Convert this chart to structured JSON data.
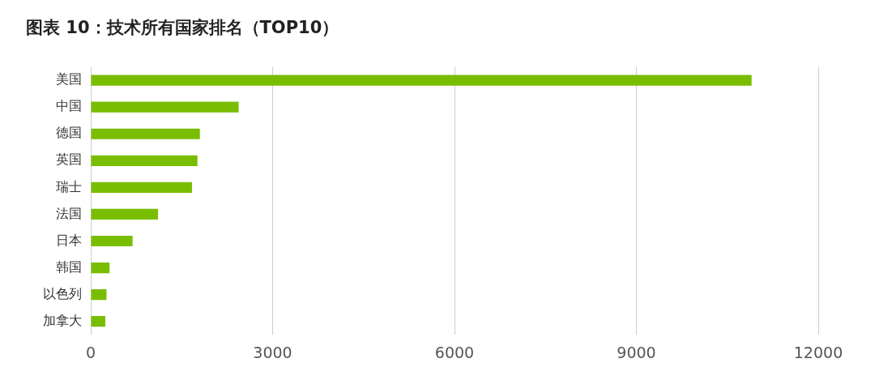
{
  "chart_data": {
    "type": "bar",
    "orientation": "horizontal",
    "title": "图表 10：技术所有国家排名（TOP10）",
    "categories": [
      "美国",
      "中国",
      "德国",
      "英国",
      "瑞士",
      "法国",
      "日本",
      "韩国",
      "以色列",
      "加拿大"
    ],
    "values": [
      10900,
      2440,
      1800,
      1760,
      1670,
      1110,
      690,
      310,
      260,
      240
    ],
    "color": "#79bd00",
    "xlim": [
      0,
      12000
    ],
    "xticks": [
      0,
      3000,
      6000,
      9000,
      12000
    ],
    "grid": "x"
  }
}
